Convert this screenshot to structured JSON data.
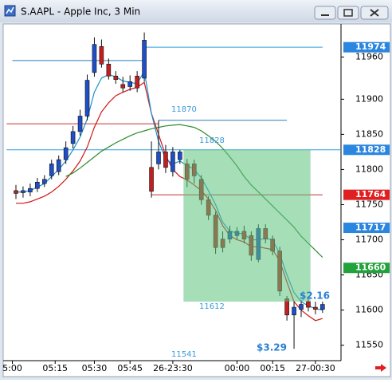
{
  "window": {
    "title": "S.AAPL - Apple Inc, 3 Min"
  },
  "chart_data": {
    "type": "candlestick",
    "open": [
      11770,
      11767,
      11768,
      11773,
      11780,
      11791,
      11797,
      11814,
      11837,
      11854,
      11876,
      11938,
      11975,
      11950,
      11933,
      11921,
      11918,
      11933,
      11930,
      11803,
      11808,
      11825,
      11797,
      11814,
      11808,
      11808,
      11786,
      11757,
      11735,
      11701,
      11701,
      11706,
      11712,
      11706,
      11672,
      11716,
      11701,
      11684,
      11616,
      11593,
      11601,
      11612,
      11604,
      11601
    ],
    "high": [
      11778,
      11776,
      11780,
      11788,
      11792,
      11814,
      11820,
      11840,
      11862,
      11885,
      11935,
      11988,
      11985,
      11958,
      11940,
      11932,
      11934,
      11940,
      11995,
      11840,
      11870,
      11835,
      11832,
      11828,
      11815,
      11814,
      11792,
      11762,
      11740,
      11712,
      11720,
      11718,
      11720,
      11712,
      11722,
      11722,
      11706,
      11690,
      11620,
      11612,
      11614,
      11618,
      11612,
      11612
    ],
    "low": [
      11758,
      11760,
      11762,
      11768,
      11775,
      11786,
      11792,
      11808,
      11830,
      11848,
      11870,
      11932,
      11945,
      11928,
      11922,
      11910,
      11912,
      11910,
      11925,
      11760,
      11800,
      11795,
      11790,
      11808,
      11775,
      11780,
      11750,
      11728,
      11680,
      11682,
      11695,
      11700,
      11695,
      11670,
      11668,
      11695,
      11678,
      11620,
      11585,
      11545,
      11590,
      11598,
      11594,
      11596
    ],
    "close": [
      11766,
      11770,
      11773,
      11782,
      11786,
      11808,
      11814,
      11831,
      11854,
      11876,
      11927,
      11978,
      11950,
      11933,
      11928,
      11916,
      11925,
      11916,
      11984,
      11769,
      11825,
      11803,
      11825,
      11825,
      11786,
      11791,
      11757,
      11735,
      11689,
      11689,
      11712,
      11712,
      11701,
      11678,
      11716,
      11701,
      11684,
      11627,
      11593,
      11604,
      11608,
      11604,
      11601,
      11608
    ],
    "up_color": "#1f4fc8",
    "down_color": "#c41e1e",
    "ylim": [
      11528,
      12006
    ],
    "yticks": [
      11550,
      11600,
      11650,
      11700,
      11750,
      11800,
      11850,
      11900,
      11960
    ],
    "xticks": [
      {
        "value": -0.5,
        "label": "5:00"
      },
      {
        "value": 5.5,
        "label": "05:15"
      },
      {
        "value": 11,
        "label": "05:30"
      },
      {
        "value": 16,
        "label": "05:45"
      },
      {
        "value": 22,
        "label": "26-23:30"
      },
      {
        "value": 31,
        "label": "00:00"
      },
      {
        "value": 36,
        "label": "00:15"
      },
      {
        "value": 42,
        "label": "27-00:30"
      }
    ],
    "series": [
      {
        "color": "#d01818",
        "values": [
          11752,
          11752,
          11754,
          11758,
          11762,
          11768,
          11776,
          11786,
          11798,
          11812,
          11832,
          11860,
          11882,
          11895,
          11905,
          11910,
          11914,
          11917,
          11924,
          11880,
          11850,
          11820,
          11800,
          11790,
          11785,
          11778,
          11770,
          11758,
          11742,
          11720,
          11706,
          11700,
          11697,
          11690,
          11690,
          11688,
          11686,
          11670,
          11640,
          11612,
          11600,
          11592,
          11585,
          11588
        ]
      },
      {
        "color": "#1a8fd0",
        "values": [
          11768,
          11768,
          11770,
          11775,
          11780,
          11790,
          11800,
          11812,
          11828,
          11846,
          11872,
          11910,
          11930,
          11935,
          11932,
          11926,
          11924,
          11922,
          11940,
          11880,
          11840,
          11815,
          11808,
          11812,
          11806,
          11800,
          11788,
          11770,
          11750,
          11725,
          11712,
          11710,
          11708,
          11700,
          11700,
          11702,
          11700,
          11680,
          11650,
          11625,
          11612,
          11606,
          11602,
          11600
        ]
      },
      {
        "color": "#2e8b2e",
        "values": [
          null,
          null,
          null,
          null,
          null,
          null,
          null,
          11790,
          11795,
          11802,
          11810,
          11818,
          11826,
          11832,
          11838,
          11843,
          11848,
          11852,
          11855,
          11858,
          11860,
          11862,
          11863,
          11864,
          11862,
          11860,
          11855,
          11848,
          11840,
          11830,
          11818,
          11805,
          11790,
          11778,
          11768,
          11758,
          11748,
          11738,
          11728,
          11718,
          11705,
          11695,
          11685,
          11675
        ]
      }
    ],
    "levels": [
      {
        "value": 11955,
        "color": "#2a7fb8",
        "from": -0.5,
        "to": 18
      },
      {
        "value": 11974,
        "color": "#2a9fd8",
        "from": 18,
        "to": 43
      },
      {
        "value": 11865,
        "color": "#c83030",
        "from": -1.3,
        "to": 20
      },
      {
        "value": 11870,
        "color": "#2a7fb8",
        "from": 20,
        "to": 38
      },
      {
        "value": 11828,
        "color": "#2a9fd8",
        "from": -1.3,
        "to": 45.6
      },
      {
        "value": 11764,
        "color": "#c83030",
        "from": 19,
        "to": 43
      }
    ],
    "zone": {
      "high": 11828,
      "low": 11612,
      "from": 23.5,
      "to": 41.3,
      "color": "#5cc27e"
    },
    "price_labels": [
      {
        "value": 11974,
        "color": "#2b86e0"
      },
      {
        "value": 11828,
        "color": "#2b86e0"
      },
      {
        "value": 11764,
        "color": "#e02020"
      },
      {
        "value": 11717,
        "color": "#2b86e0"
      },
      {
        "value": 11660,
        "color": "#22a23a"
      }
    ],
    "annotations": [
      {
        "text": "11870",
        "color": "#3a9ad9"
      },
      {
        "text": "11828",
        "color": "#3a9ad9"
      },
      {
        "text": "11612",
        "color": "#3a9ad9"
      },
      {
        "text": "11541",
        "color": "#3a9ad9"
      },
      {
        "text": "$3.29",
        "color": "#2a7fd4"
      },
      {
        "text": "$2.16",
        "color": "#2a7fd4"
      }
    ]
  }
}
